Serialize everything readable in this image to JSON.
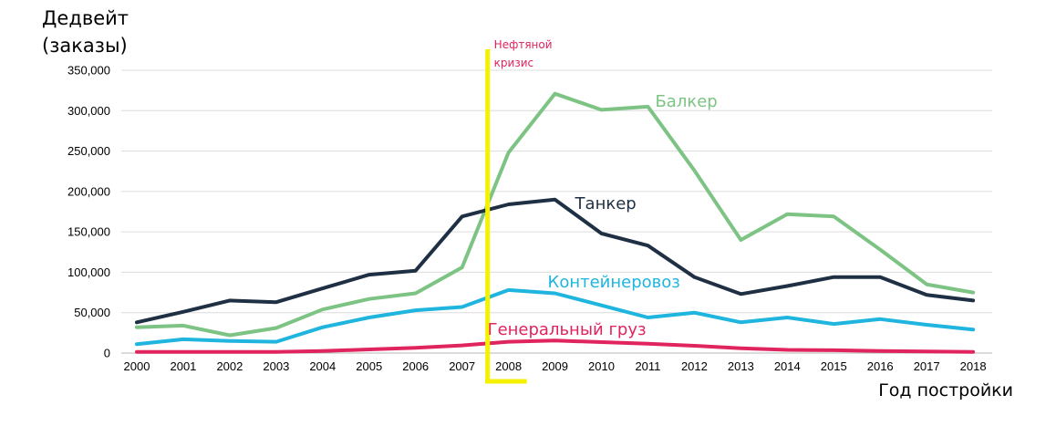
{
  "chart_data": {
    "type": "line",
    "ylabel_line1": "Дедвейт",
    "ylabel_line2": "(заказы)",
    "xlabel": "Год постройки",
    "x": [
      "2000",
      "2001",
      "2002",
      "2003",
      "2004",
      "2005",
      "2006",
      "2007",
      "2008",
      "2009",
      "2010",
      "2011",
      "2012",
      "2013",
      "2014",
      "2015",
      "2016",
      "2017",
      "2018"
    ],
    "ylim": [
      0,
      350000
    ],
    "yticks": [
      0,
      50000,
      100000,
      150000,
      200000,
      250000,
      300000,
      350000
    ],
    "ytick_labels": [
      "0",
      "50,000",
      "100,000",
      "150,000",
      "200,000",
      "250,000",
      "300,000",
      "350,000"
    ],
    "grid": "horizontal",
    "series": [
      {
        "name": "Балкер",
        "color": "#7dc383",
        "values": [
          32000,
          34000,
          22000,
          31000,
          54000,
          67000,
          74000,
          106000,
          248000,
          321000,
          301000,
          305000,
          226000,
          140000,
          172000,
          169000,
          128000,
          85000,
          75000
        ]
      },
      {
        "name": "Танкер",
        "color": "#1f3044",
        "values": [
          38000,
          51000,
          65000,
          63000,
          80000,
          97000,
          102000,
          169000,
          184000,
          190000,
          148000,
          133000,
          94000,
          73000,
          83000,
          94000,
          94000,
          72000,
          65000
        ]
      },
      {
        "name": "Контейнеровоз",
        "color": "#1fb5de",
        "values": [
          11000,
          17000,
          15000,
          14000,
          32000,
          44000,
          53000,
          57000,
          78000,
          74000,
          59000,
          44000,
          50000,
          38000,
          44000,
          36000,
          42000,
          35000,
          29000
        ]
      },
      {
        "name": "Генеральный груз",
        "color": "#e0245e",
        "values": [
          1500,
          1500,
          1500,
          1500,
          2500,
          4500,
          6500,
          9500,
          14000,
          15500,
          13500,
          11500,
          9000,
          6000,
          4000,
          3500,
          2500,
          2000,
          1500
        ]
      }
    ],
    "annotations": [
      {
        "type": "vertical-line",
        "x_between": [
          "2007",
          "2008"
        ],
        "color": "#f5f200",
        "label_line1": "Нефтяной",
        "label_line2": "кризис",
        "label_color": "#e0245e"
      }
    ]
  }
}
